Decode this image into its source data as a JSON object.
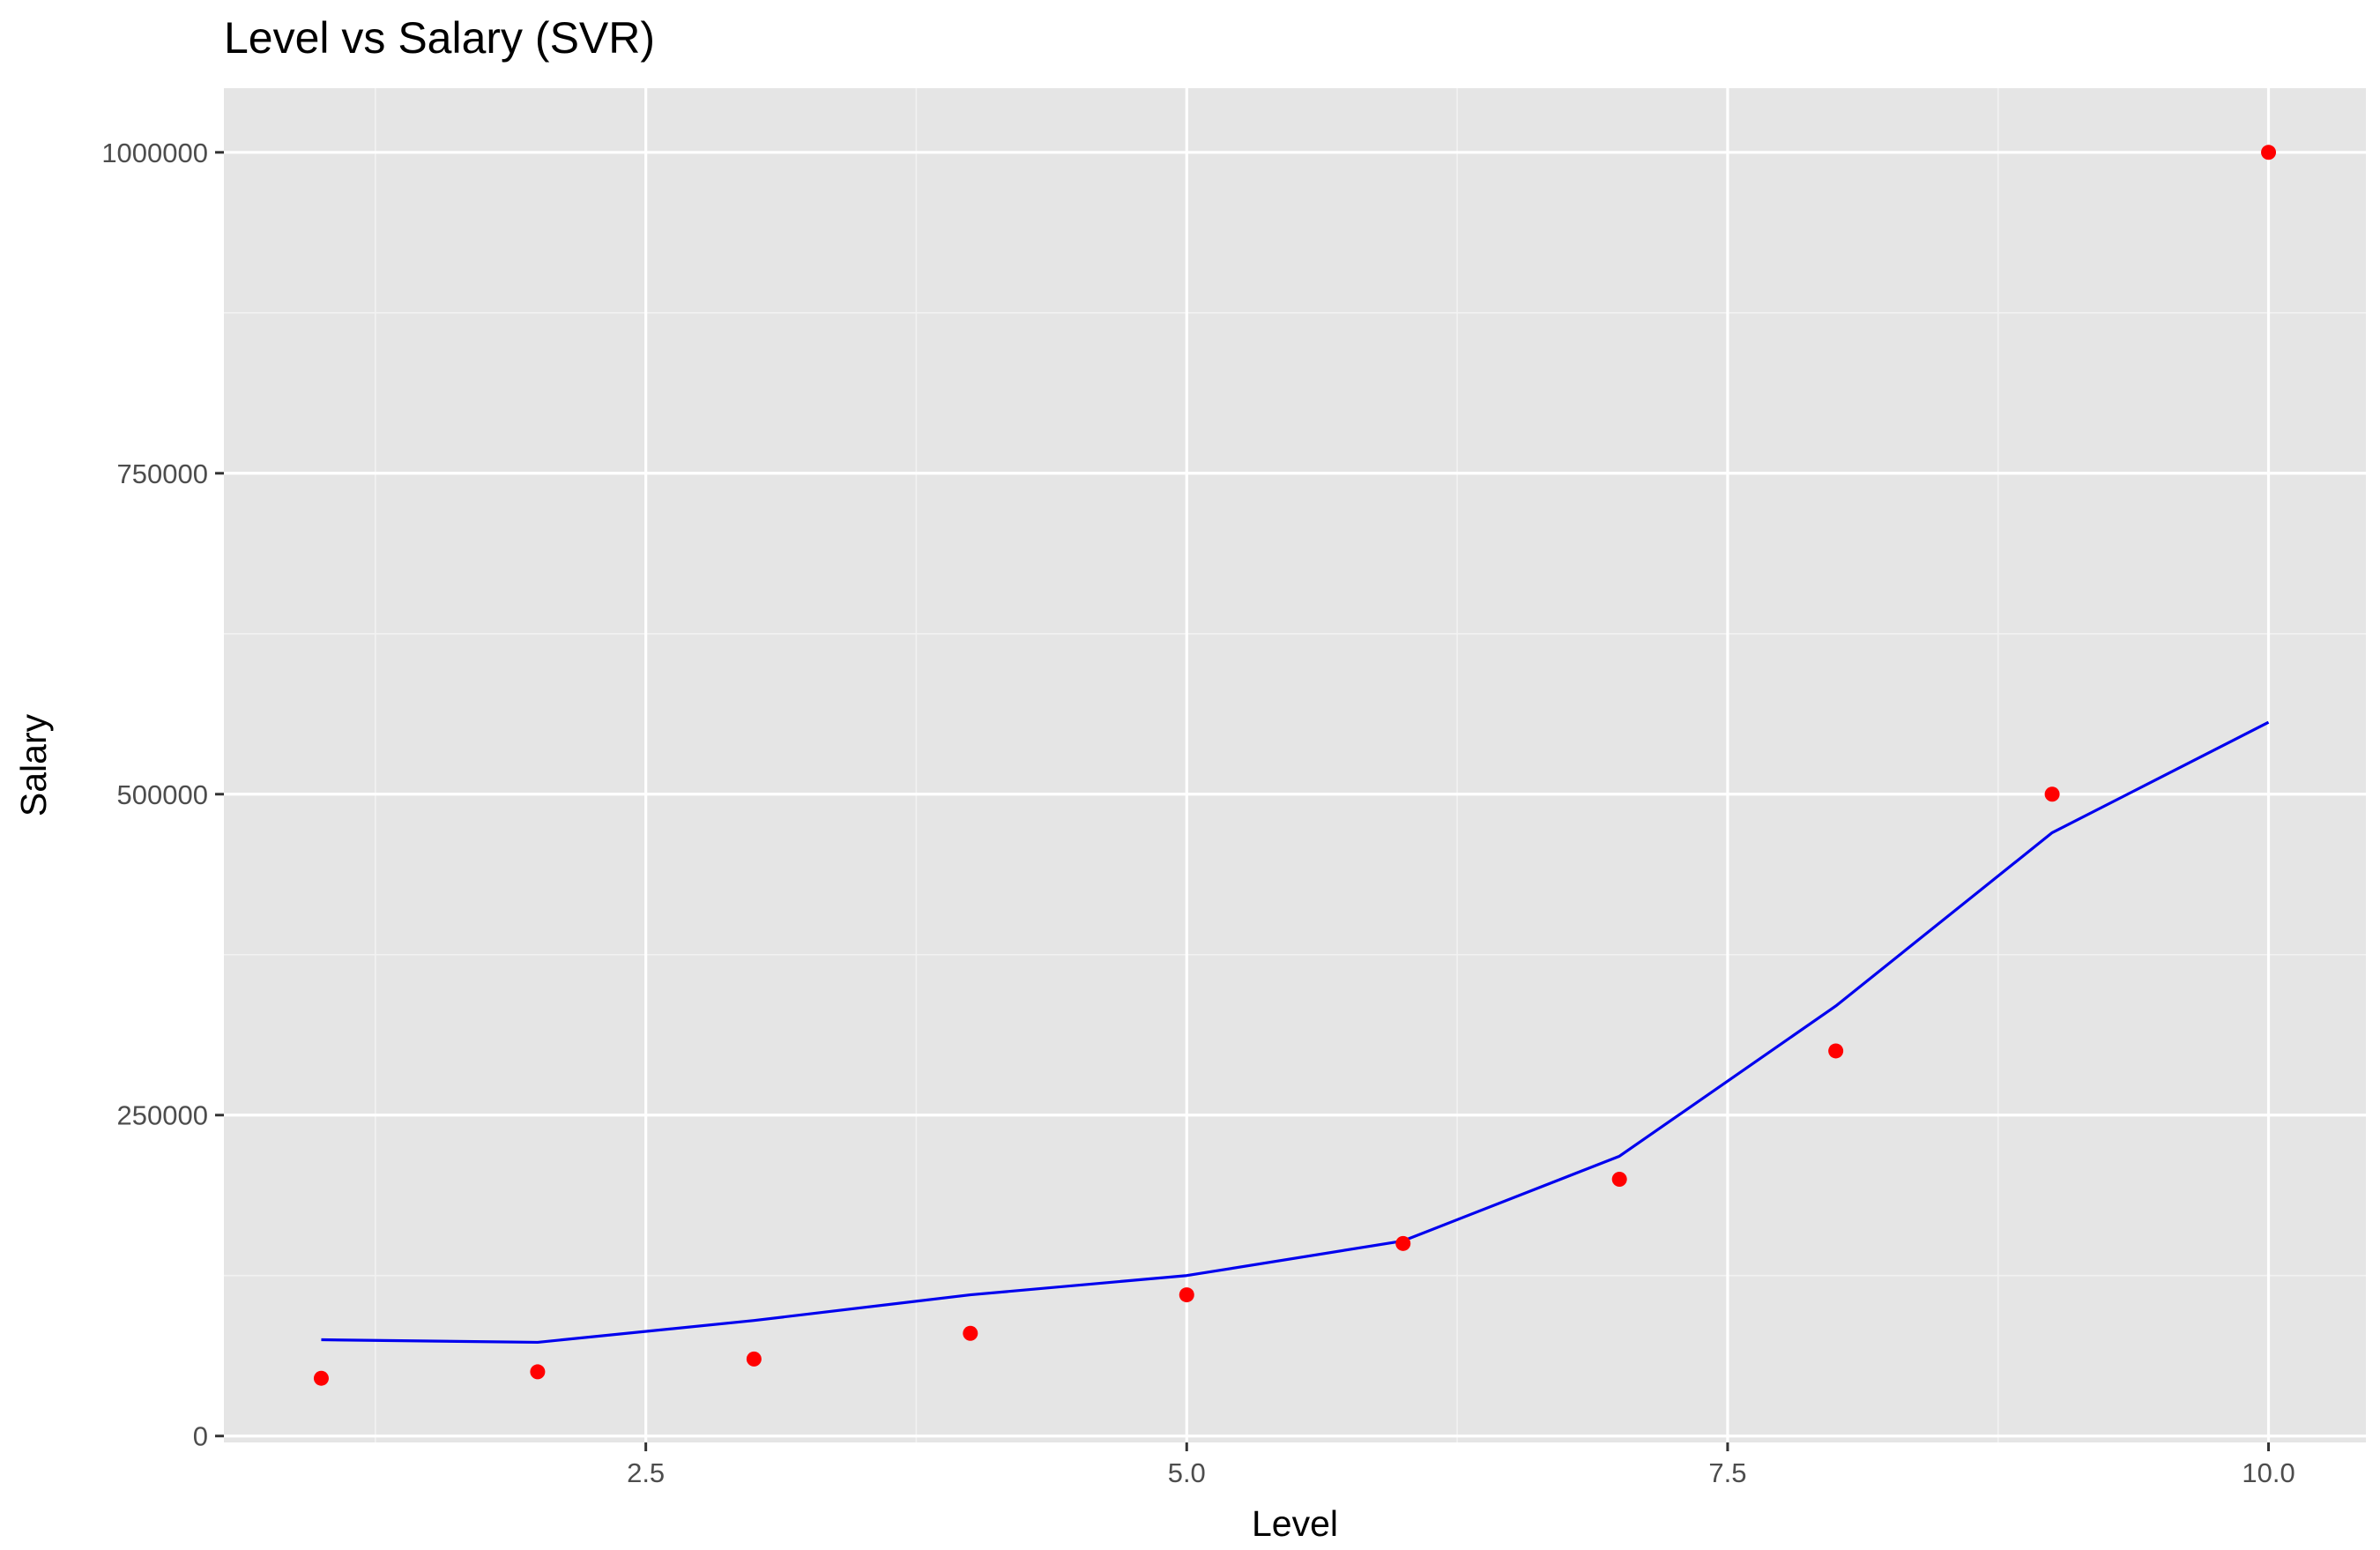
{
  "chart_data": {
    "type": "scatter",
    "title": "Level vs Salary (SVR)",
    "xlabel": "Level",
    "ylabel": "Salary",
    "xlim": [
      0.55,
      10.45
    ],
    "ylim": [
      -5000,
      1050000
    ],
    "x_ticks": [
      2.5,
      5.0,
      7.5,
      10.0
    ],
    "x_tick_labels": [
      "2.5",
      "5.0",
      "7.5",
      "10.0"
    ],
    "y_ticks": [
      0,
      250000,
      500000,
      750000,
      1000000
    ],
    "y_tick_labels": [
      "0",
      "250000",
      "500000",
      "750000",
      "1000000"
    ],
    "grid": true,
    "legend": "none",
    "series": [
      {
        "type": "scatter",
        "color": "#ff0000",
        "x": [
          1,
          2,
          3,
          4,
          5,
          6,
          7,
          8,
          9,
          10
        ],
        "y": [
          45000,
          50000,
          60000,
          80000,
          110000,
          150000,
          200000,
          300000,
          500000,
          1000000
        ]
      },
      {
        "type": "line",
        "color": "#0000ee",
        "x": [
          1,
          2,
          3,
          4,
          5,
          6,
          7,
          8,
          9,
          10
        ],
        "y": [
          75000,
          73000,
          90000,
          110000,
          125000,
          152000,
          218000,
          335000,
          470000,
          556000
        ]
      }
    ]
  }
}
